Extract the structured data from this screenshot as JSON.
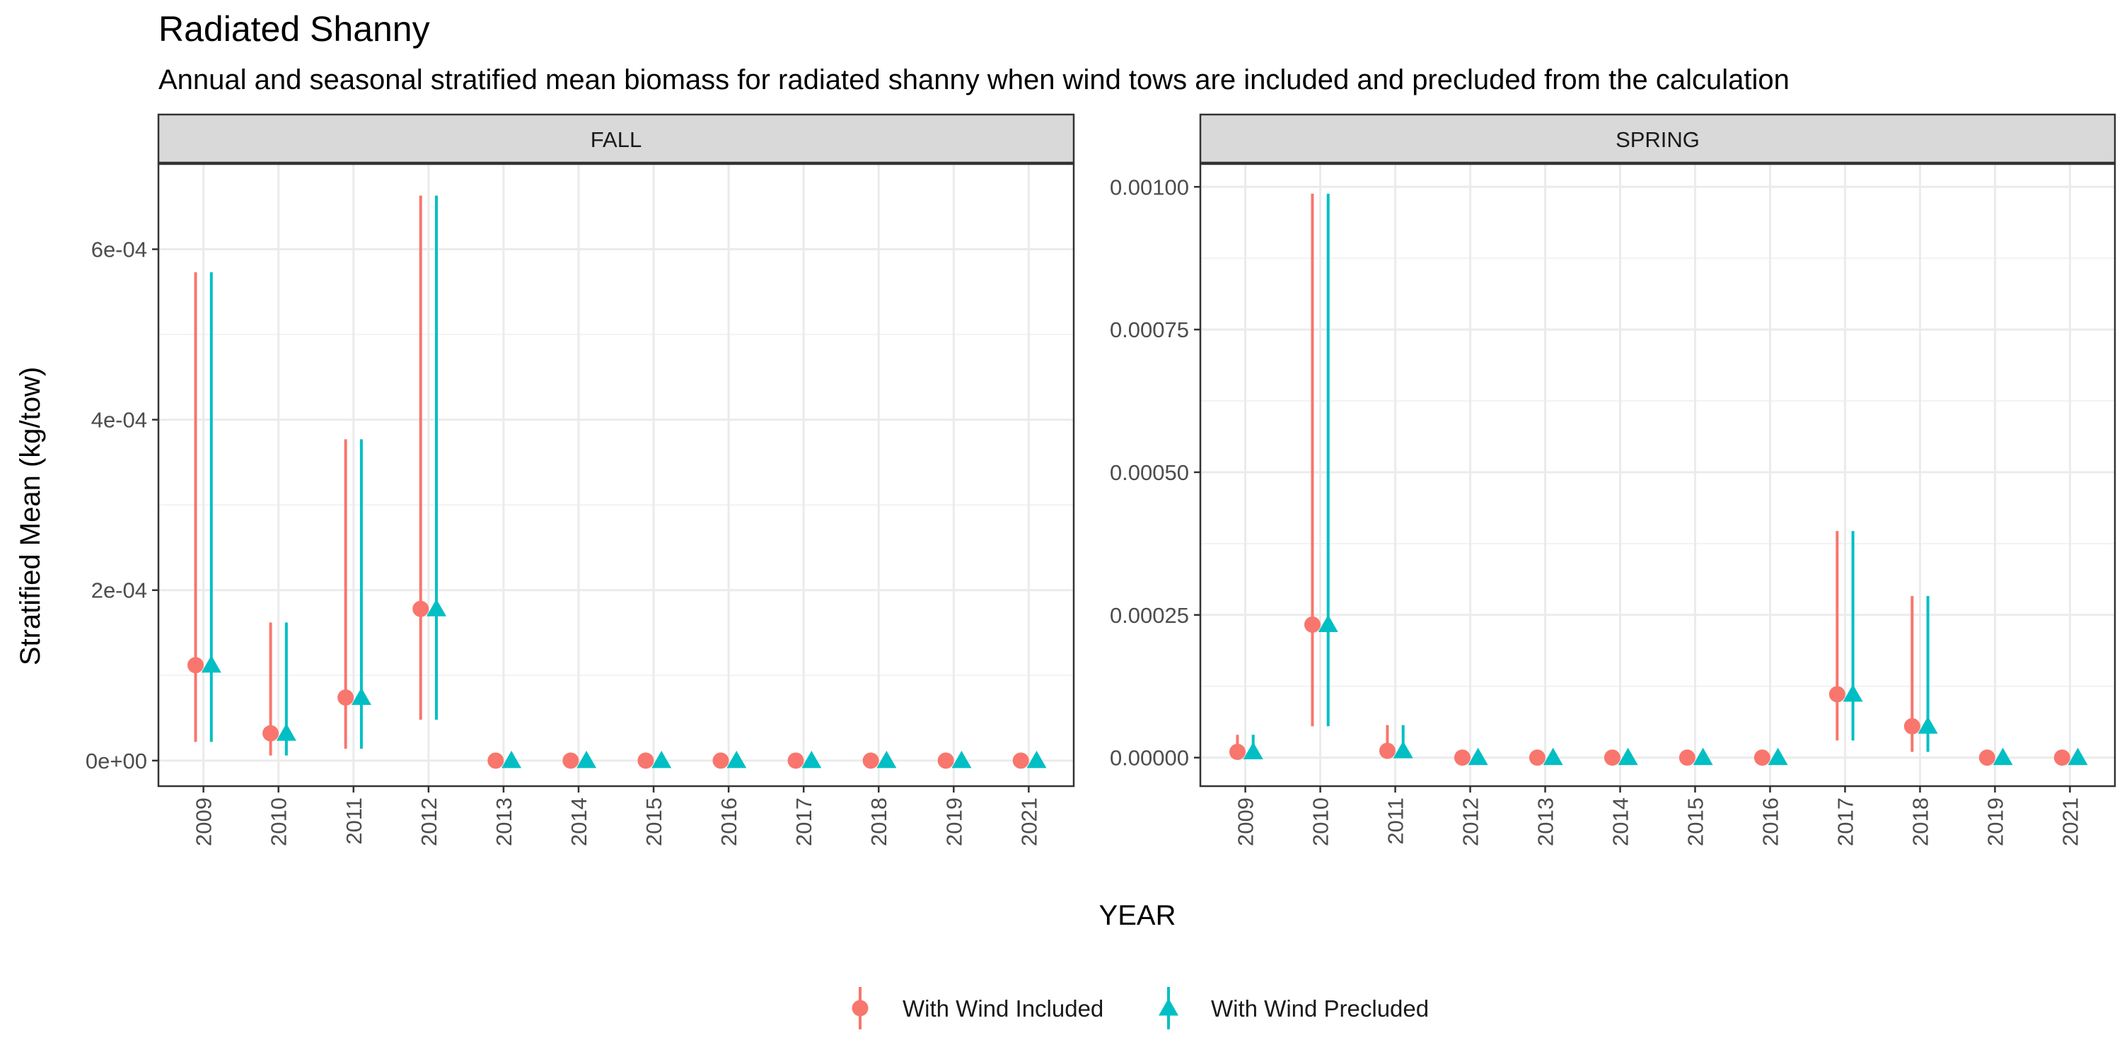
{
  "title": "Radiated Shanny",
  "subtitle": "Annual and seasonal stratified mean biomass for radiated shanny when wind tows are included and precluded from the calculation",
  "ylabel": "Stratified Mean (kg/tow)",
  "xlabel": "YEAR",
  "colors": {
    "included": "#F8766D",
    "precluded": "#00BFC4"
  },
  "legend": {
    "position": "bottom",
    "items": [
      {
        "label": "With Wind Included",
        "shape": "circle",
        "color": "#F8766D"
      },
      {
        "label": "With Wind Precluded",
        "shape": "triangle",
        "color": "#00BFC4"
      }
    ]
  },
  "chart_data": [
    {
      "type": "scatter",
      "panel": "FALL",
      "categories": [
        "2009",
        "2010",
        "2011",
        "2012",
        "2013",
        "2014",
        "2015",
        "2016",
        "2017",
        "2018",
        "2019",
        "2021"
      ],
      "ylim": [
        -3e-05,
        0.0007
      ],
      "yticks": [
        0,
        0.0002,
        0.0004,
        0.0006
      ],
      "ytick_labels": [
        "0e+00",
        "2e-04",
        "4e-04",
        "6e-04"
      ],
      "grid": true,
      "series": [
        {
          "name": "With Wind Included",
          "values": [
            0.000112,
            3.2e-05,
            7.4e-05,
            0.000178,
            0,
            0,
            0,
            0,
            0,
            0,
            0,
            0
          ],
          "lower": [
            2.2e-05,
            6e-06,
            1.4e-05,
            4.8e-05,
            0,
            0,
            0,
            0,
            0,
            0,
            0,
            0
          ],
          "upper": [
            0.000573,
            0.000162,
            0.000377,
            0.000663,
            0,
            0,
            0,
            0,
            0,
            0,
            0,
            0
          ]
        },
        {
          "name": "With Wind Precluded",
          "values": [
            0.000112,
            3.2e-05,
            7.4e-05,
            0.000178,
            0,
            0,
            0,
            0,
            0,
            0,
            0,
            0
          ],
          "lower": [
            2.2e-05,
            6e-06,
            1.4e-05,
            4.8e-05,
            0,
            0,
            0,
            0,
            0,
            0,
            0,
            0
          ],
          "upper": [
            0.000573,
            0.000162,
            0.000377,
            0.000663,
            0,
            0,
            0,
            0,
            0,
            0,
            0,
            0
          ]
        }
      ]
    },
    {
      "type": "scatter",
      "panel": "SPRING",
      "categories": [
        "2009",
        "2010",
        "2011",
        "2012",
        "2013",
        "2014",
        "2015",
        "2016",
        "2017",
        "2018",
        "2019",
        "2021"
      ],
      "ylim": [
        -5e-05,
        0.00104
      ],
      "yticks": [
        0,
        0.00025,
        0.0005,
        0.00075,
        0.001
      ],
      "ytick_labels": [
        "0.00000",
        "0.00025",
        "0.00050",
        "0.00075",
        "0.00100"
      ],
      "grid": true,
      "series": [
        {
          "name": "With Wind Included",
          "values": [
            1e-05,
            0.000233,
            1.2e-05,
            0,
            0,
            0,
            0,
            0,
            0.000111,
            5.5e-05,
            0,
            0
          ],
          "lower": [
            1e-06,
            5.5e-05,
            1e-06,
            0,
            0,
            0,
            0,
            0,
            3e-05,
            1e-05,
            0,
            0
          ],
          "upper": [
            4e-05,
            0.000988,
            5.7e-05,
            0,
            0,
            0,
            0,
            0,
            0.000397,
            0.000283,
            0,
            0
          ]
        },
        {
          "name": "With Wind Precluded",
          "values": [
            1e-05,
            0.000233,
            1.2e-05,
            0,
            0,
            0,
            0,
            0,
            0.000111,
            5.5e-05,
            0,
            0
          ],
          "lower": [
            1e-06,
            5.5e-05,
            1e-06,
            0,
            0,
            0,
            0,
            0,
            3e-05,
            1e-05,
            0,
            0
          ],
          "upper": [
            4e-05,
            0.000988,
            5.7e-05,
            0,
            0,
            0,
            0,
            0,
            0.000397,
            0.000283,
            0,
            0
          ]
        }
      ]
    }
  ]
}
